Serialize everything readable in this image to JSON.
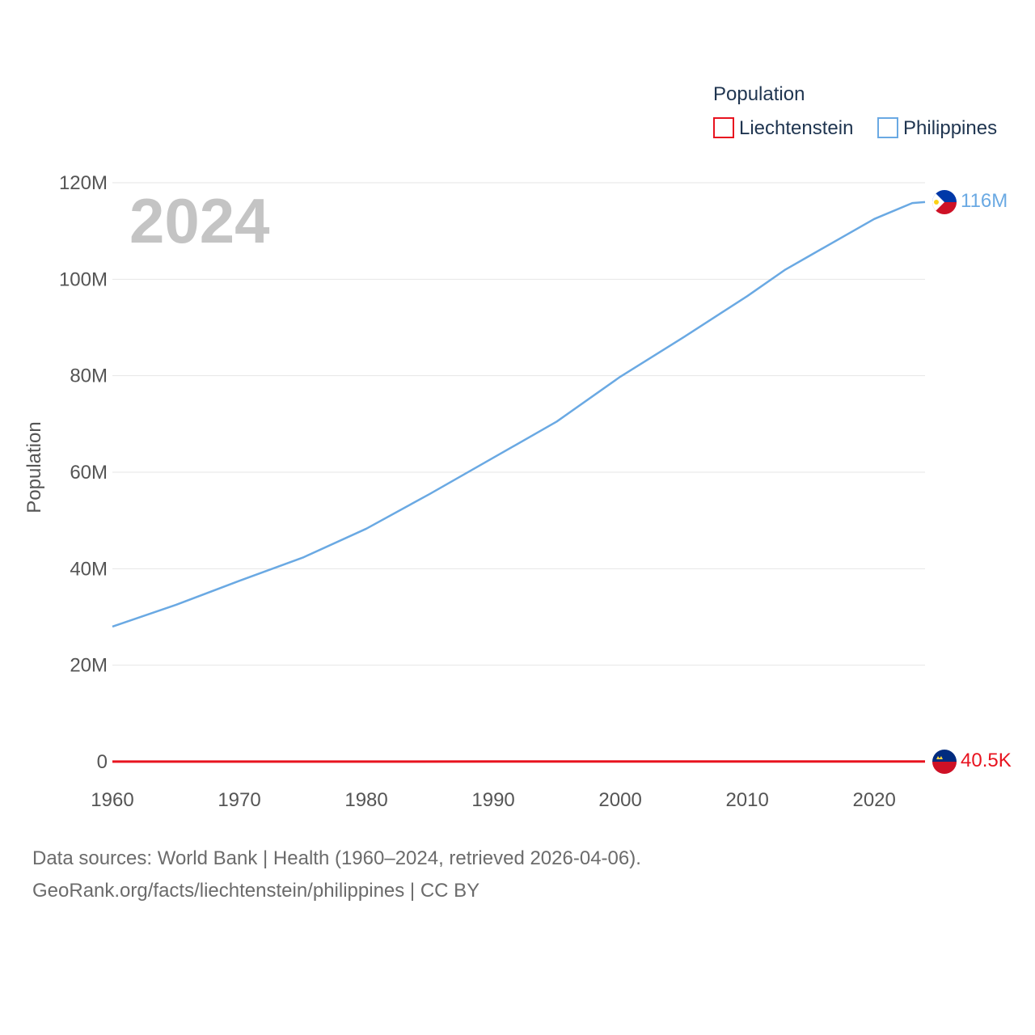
{
  "legend": {
    "title": "Population",
    "items": [
      {
        "name": "Liechtenstein",
        "color": "#e8131f"
      },
      {
        "name": "Philippines",
        "color": "#6aa9e3"
      }
    ]
  },
  "year_label": "2024",
  "footer": {
    "line1": "Data sources: World Bank | Health (1960–2024, retrieved 2026-04-06).",
    "line2": "GeoRank.org/facts/liechtenstein/philippines | CC BY"
  },
  "end_labels": {
    "philippines": "116M",
    "liechtenstein": "40.5K"
  },
  "flags": {
    "philippines": "philippines-flag-icon",
    "liechtenstein": "liechtenstein-flag-icon"
  },
  "chart_data": {
    "type": "line",
    "title": "Population",
    "xlabel": "",
    "ylabel": "Population",
    "xlim": [
      1960,
      2024
    ],
    "ylim": [
      0,
      120000000
    ],
    "x_ticks": [
      1960,
      1970,
      1980,
      1990,
      2000,
      2010,
      2020
    ],
    "x_tick_labels": [
      "1960",
      "1970",
      "1980",
      "1990",
      "2000",
      "2010",
      "2020"
    ],
    "y_ticks": [
      0,
      20000000,
      40000000,
      60000000,
      80000000,
      100000000,
      120000000
    ],
    "y_tick_labels": [
      "0",
      "20M",
      "40M",
      "60M",
      "80M",
      "100M",
      "120M"
    ],
    "grid": true,
    "legend_position": "top-right",
    "series": [
      {
        "name": "Philippines",
        "color": "#6aa9e3",
        "x": [
          1960,
          1965,
          1970,
          1975,
          1980,
          1985,
          1990,
          1995,
          2000,
          2005,
          2010,
          2013,
          2015,
          2020,
          2023,
          2024
        ],
        "values": [
          28000000,
          32500000,
          37500000,
          42300000,
          48300000,
          55500000,
          63000000,
          70500000,
          79800000,
          88000000,
          96500000,
          102000000,
          105000000,
          112500000,
          115800000,
          116000000
        ]
      },
      {
        "name": "Liechtenstein",
        "color": "#e8131f",
        "x": [
          1960,
          1970,
          1980,
          1990,
          2000,
          2010,
          2020,
          2024
        ],
        "values": [
          16500,
          21000,
          25000,
          28800,
          33000,
          36000,
          39000,
          40500
        ]
      }
    ]
  }
}
